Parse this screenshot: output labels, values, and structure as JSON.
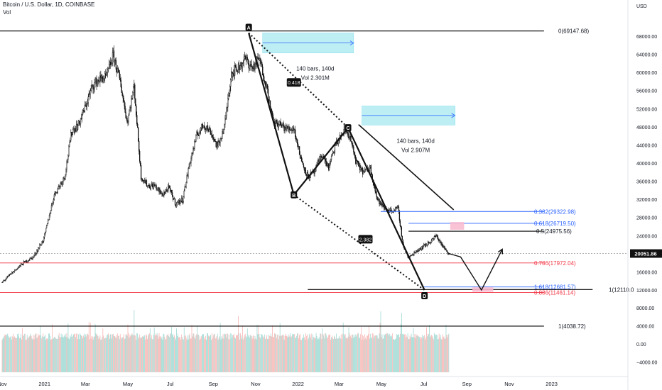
{
  "header": {
    "symbol": "Bitcoin / U.S. Dollar, 1D, COINBASE",
    "indicator": "Vol"
  },
  "colors": {
    "up": "#26a69a",
    "down": "#ef5350",
    "text": "#131722",
    "red": "#f23645",
    "blue": "#2962ff",
    "box": "#b2ebf2"
  },
  "chart_data": {
    "type": "candlestick",
    "currency_label": "USD",
    "price_axis": {
      "min": 10000,
      "max": 72000,
      "ticks": [
        12000,
        16000,
        20000,
        24000,
        28000,
        32000,
        36000,
        40000,
        44000,
        48000,
        52000,
        56000,
        60000,
        64000,
        68000
      ]
    },
    "volume_axis": {
      "ticks": [
        8000,
        4000,
        0,
        -4000
      ],
      "tick_labels": [
        "8000.00",
        "4000.00",
        "0.00",
        "−4000.00"
      ]
    },
    "x_ticks": [
      {
        "label": "Nov",
        "t": 0
      },
      {
        "label": "2021",
        "t": 61
      },
      {
        "label": "Mar",
        "t": 120
      },
      {
        "label": "May",
        "t": 181
      },
      {
        "label": "Jul",
        "t": 242
      },
      {
        "label": "Sep",
        "t": 304
      },
      {
        "label": "Nov",
        "t": 365
      },
      {
        "label": "2022",
        "t": 426
      },
      {
        "label": "Mar",
        "t": 485
      },
      {
        "label": "May",
        "t": 546
      },
      {
        "label": "Jul",
        "t": 607
      },
      {
        "label": "Sep",
        "t": 669
      },
      {
        "label": "Nov",
        "t": 730
      },
      {
        "label": "2023",
        "t": 791
      }
    ],
    "price_path": [
      [
        0,
        13700
      ],
      [
        15,
        15900
      ],
      [
        30,
        17900
      ],
      [
        45,
        19300
      ],
      [
        60,
        23300
      ],
      [
        75,
        33000
      ],
      [
        90,
        37000
      ],
      [
        100,
        47000
      ],
      [
        110,
        48500
      ],
      [
        120,
        52500
      ],
      [
        130,
        57000
      ],
      [
        140,
        58500
      ],
      [
        150,
        59000
      ],
      [
        160,
        63800
      ],
      [
        170,
        58000
      ],
      [
        180,
        49000
      ],
      [
        190,
        57000
      ],
      [
        200,
        37000
      ],
      [
        210,
        35000
      ],
      [
        220,
        35000
      ],
      [
        230,
        33000
      ],
      [
        240,
        34500
      ],
      [
        250,
        31000
      ],
      [
        260,
        32000
      ],
      [
        270,
        40000
      ],
      [
        280,
        46000
      ],
      [
        290,
        48500
      ],
      [
        300,
        47000
      ],
      [
        310,
        43500
      ],
      [
        320,
        48000
      ],
      [
        330,
        60000
      ],
      [
        340,
        61000
      ],
      [
        350,
        63000
      ],
      [
        360,
        61000
      ],
      [
        370,
        63000
      ],
      [
        380,
        57500
      ],
      [
        390,
        49000
      ],
      [
        400,
        48500
      ],
      [
        410,
        47500
      ],
      [
        420,
        47700
      ],
      [
        430,
        41000
      ],
      [
        440,
        37000
      ],
      [
        450,
        38000
      ],
      [
        460,
        42000
      ],
      [
        470,
        39000
      ],
      [
        480,
        44000
      ],
      [
        490,
        46500
      ],
      [
        495,
        47200
      ],
      [
        500,
        46000
      ],
      [
        510,
        40000
      ],
      [
        520,
        38000
      ],
      [
        530,
        39000
      ],
      [
        540,
        32000
      ],
      [
        550,
        30000
      ],
      [
        560,
        29500
      ],
      [
        570,
        30000
      ],
      [
        577,
        22000
      ],
      [
        585,
        19000
      ],
      [
        595,
        20500
      ],
      [
        605,
        21500
      ],
      [
        615,
        22500
      ],
      [
        625,
        24000
      ],
      [
        635,
        21500
      ],
      [
        643,
        20050
      ]
    ],
    "current_price": {
      "value": 20051.86,
      "label": "20051.86"
    },
    "volume": {
      "spikes": [
        [
          190,
          7500
        ],
        [
          340,
          6200
        ],
        [
          545,
          7200
        ],
        [
          575,
          6800
        ]
      ]
    },
    "fib_lines": [
      {
        "label": "0(69147.68)",
        "value": 69147.68,
        "color": "#000000",
        "t1": -20,
        "t2": 780
      },
      {
        "label": "0.382(29322.98)",
        "value": 29322.98,
        "color": "#2962ff",
        "t1": 545,
        "t2": 780
      },
      {
        "label": "0.618(26719.50)",
        "value": 26719.5,
        "color": "#2962ff",
        "t1": 585,
        "t2": 780
      },
      {
        "label": "0.5(24975.56)",
        "value": 24975.56,
        "color": "#000000",
        "t1": 585,
        "t2": 780
      },
      {
        "label": "0.786(17972.04)",
        "value": 17972.04,
        "color": "#f23645",
        "t1": -20,
        "t2": 780
      },
      {
        "label": "1.618(12681.57)",
        "value": 12681.57,
        "color": "#2962ff",
        "t1": 605,
        "t2": 780
      },
      {
        "label": "1(12110.0",
        "value": 12110,
        "color": "#000000",
        "t1": 440,
        "t2": 850
      },
      {
        "label": "0.886(11461.14)",
        "value": 11461.14,
        "color": "#f23645",
        "t1": -20,
        "t2": 780
      },
      {
        "label": "1(4038.72)",
        "value": 4038.72,
        "color": "#000000",
        "t1": -20,
        "t2": 780
      }
    ],
    "xabcd": {
      "points": [
        {
          "label": "A",
          "t": 355,
          "v": 68700
        },
        {
          "label": "B",
          "t": 420,
          "v": 33000
        },
        {
          "label": "C",
          "t": 498,
          "v": 47800
        },
        {
          "label": "D",
          "t": 608,
          "v": 12000
        }
      ],
      "ratios": [
        {
          "label": "0.418",
          "t": 420,
          "v": 57800
        },
        {
          "label": "2.382",
          "t": 523,
          "v": 23200
        }
      ]
    },
    "measure_boxes": [
      {
        "t1": 375,
        "t2": 506,
        "v1": 68700,
        "v2": 64300,
        "label_line1": "140 bars, 140d",
        "label_line2": "Vol 2.301M"
      },
      {
        "t1": 518,
        "t2": 652,
        "v1": 52600,
        "v2": 48400,
        "label_line1": "140 bars, 140d",
        "label_line2": "Vol 2.907M"
      }
    ],
    "trend_line": [
      [
        513,
        48500
      ],
      [
        650,
        29700
      ]
    ],
    "projection": [
      [
        643,
        20050
      ],
      [
        660,
        19300
      ],
      [
        690,
        12000
      ],
      [
        720,
        21000
      ]
    ],
    "target_boxes": [
      {
        "t1": 645,
        "t2": 665,
        "v1": 27000,
        "v2": 25300
      },
      {
        "t1": 677,
        "t2": 707,
        "v1": 12600,
        "v2": 11600
      }
    ]
  }
}
